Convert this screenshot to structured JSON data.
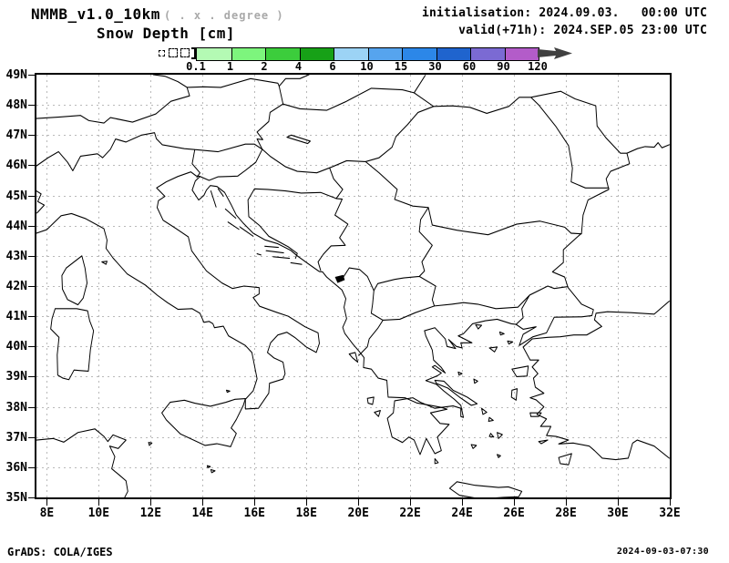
{
  "header": {
    "model_title": "NMMB_v1.0_10km",
    "resolution_note": "( . x . degree )",
    "variable_title": "Snow Depth [cm]",
    "init_line": "initialisation: 2024.09.03.   00:00 UTC",
    "valid_line": "valid(+71h): 2024.SEP.05 23:00 UTC"
  },
  "legend": {
    "units_ticks": [
      "0.1",
      "1",
      "2",
      "4",
      "6",
      "10",
      "15",
      "30",
      "60",
      "90",
      "120"
    ],
    "segment_colors": [
      "#b4fab4",
      "#7df57d",
      "#3ccd3c",
      "#17a117",
      "#9cd3f5",
      "#56a4ee",
      "#2c87e8",
      "#1f64ce",
      "#7b6ad3",
      "#b35cc9"
    ],
    "overflow_arrow_color": "#404040"
  },
  "map": {
    "lat_labels": [
      "49N",
      "48N",
      "47N",
      "46N",
      "45N",
      "44N",
      "43N",
      "42N",
      "41N",
      "40N",
      "39N",
      "38N",
      "37N",
      "36N",
      "35N"
    ],
    "lon_labels": [
      "8E",
      "10E",
      "12E",
      "14E",
      "16E",
      "18E",
      "20E",
      "22E",
      "24E",
      "26E",
      "28E",
      "30E",
      "32E"
    ],
    "grid_color": "#b9b9b9",
    "lat_range": [
      35,
      49
    ],
    "lon_range": [
      7.6,
      32
    ]
  },
  "footer": {
    "credit": "GrADS: COLA/IGES",
    "timestamp": "2024-09-03-07:30"
  }
}
